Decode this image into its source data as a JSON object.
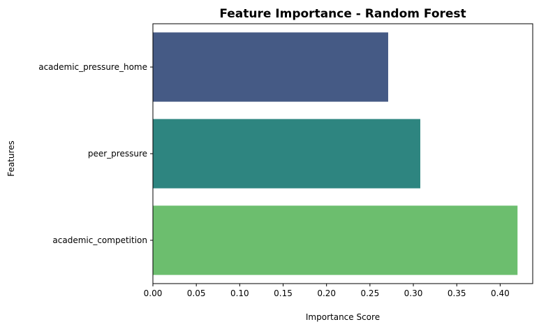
{
  "chart_data": {
    "type": "bar",
    "orientation": "horizontal",
    "title": "Feature Importance - Random Forest",
    "xlabel": "Importance Score",
    "ylabel": "Features",
    "categories": [
      "academic_pressure_home",
      "peer_pressure",
      "academic_competition"
    ],
    "values": [
      0.271,
      0.308,
      0.42
    ],
    "colors": [
      "#455a85",
      "#2e8580",
      "#6cbe6e"
    ],
    "xlim": [
      0,
      0.4375
    ],
    "xticks": [
      "0.00",
      "0.05",
      "0.10",
      "0.15",
      "0.20",
      "0.25",
      "0.30",
      "0.35",
      "0.40"
    ],
    "grid": false,
    "legend": "none"
  }
}
